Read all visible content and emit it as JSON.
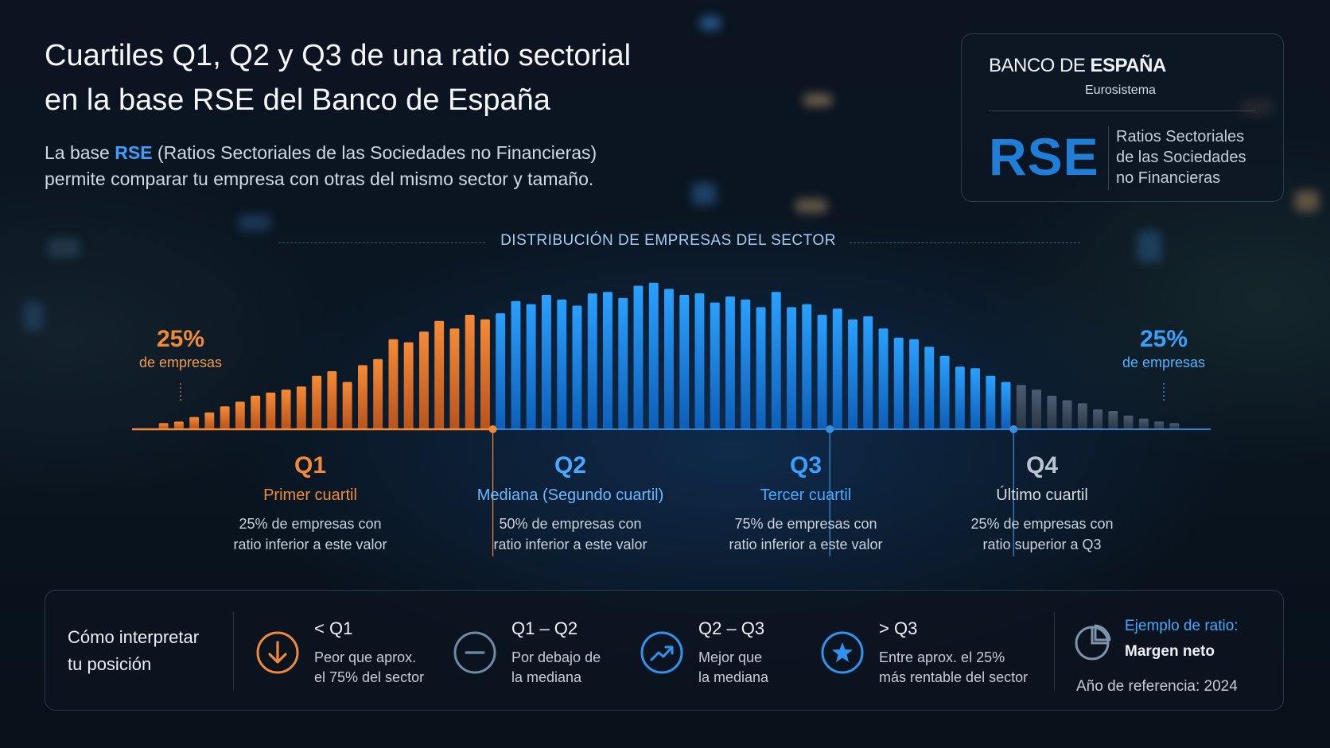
{
  "header": {
    "title_line1": "Cuartiles Q1, Q2 y Q3 de una ratio sectorial",
    "title_line2": "en la base RSE del Banco de España",
    "subtitle_pre": "La base ",
    "subtitle_hl": "RSE",
    "subtitle_post": " (Ratios Sectoriales de las Sociedades no Financieras)",
    "subtitle_line2": "permite comparar tu empresa con otras del mismo sector y tamaño."
  },
  "brand": {
    "logo_light": "BANCO DE ",
    "logo_bold": "ESPAÑA",
    "subline": "Eurosistema",
    "acronym": "RSE",
    "desc_line1": "Ratios Sectoriales",
    "desc_line2": "de las Sociedades",
    "desc_line3": "no Financieras"
  },
  "distribution": {
    "title": "DISTRIBUCIÓN DE EMPRESAS DEL SECTOR",
    "left_pct": "25%",
    "left_pct_text": "de empresas",
    "right_pct": "25%",
    "right_pct_text": "de empresas",
    "colors": {
      "q1": "#e8742a",
      "q2": "#1f8ef0",
      "q3": "#1a86ea",
      "q4": "#3a4a5c",
      "axis_q1": "#f08a3a",
      "axis_rest": "#3a8fe0"
    }
  },
  "chart_data": {
    "type": "bar",
    "bar_heights": [
      8,
      10,
      16,
      22,
      30,
      36,
      44,
      48,
      52,
      56,
      70,
      76,
      62,
      84,
      92,
      118,
      114,
      128,
      142,
      132,
      150,
      144,
      152,
      168,
      164,
      176,
      170,
      162,
      178,
      180,
      172,
      188,
      192,
      184,
      176,
      178,
      166,
      174,
      170,
      160,
      180,
      160,
      164,
      150,
      158,
      144,
      148,
      132,
      120,
      118,
      108,
      96,
      82,
      80,
      70,
      62,
      58,
      52,
      44,
      38,
      34,
      26,
      24,
      18,
      14,
      10,
      8
    ],
    "quartile_splits": [
      22,
      44,
      56
    ],
    "ylim": [
      0,
      200
    ]
  },
  "quartiles": [
    {
      "name": "Q1",
      "label": "Primer cuartil",
      "desc1": "25% de empresas con",
      "desc2": "ratio inferior a este valor"
    },
    {
      "name": "Q2",
      "label": "Mediana (Segundo cuartil)",
      "desc1": "50% de empresas con",
      "desc2": "ratio inferior a este valor"
    },
    {
      "name": "Q3",
      "label": "Tercer cuartil",
      "desc1": "75% de empresas con",
      "desc2": "ratio inferior a este valor"
    },
    {
      "name": "Q4",
      "label": "Último cuartil",
      "desc1": "25% de empresas con",
      "desc2": "ratio superior a Q3"
    }
  ],
  "legend": {
    "heading_line1": "Cómo interpretar",
    "heading_line2": "tu posición",
    "items": [
      {
        "icon": "arrow-down-circle-icon",
        "title": "< Q1",
        "line1": "Peor que aprox.",
        "line2": "el 75% del sector",
        "color": "#f08a3a"
      },
      {
        "icon": "minus-circle-icon",
        "title": "Q1 – Q2",
        "line1": "Por debajo de",
        "line2": "la mediana",
        "color": "#6f8aa6"
      },
      {
        "icon": "trend-up-circle-icon",
        "title": "Q2 – Q3",
        "line1": "Mejor que",
        "line2": "la mediana",
        "color": "#2f93ef"
      },
      {
        "icon": "star-circle-icon",
        "title": "> Q3",
        "line1": "Entre aprox. el 25%",
        "line2": "más rentable del sector",
        "color": "#2f93ef"
      }
    ],
    "example_label": "Ejemplo de ratio:",
    "example_value": "Margen neto",
    "year_text": "Año de referencia: 2024"
  }
}
